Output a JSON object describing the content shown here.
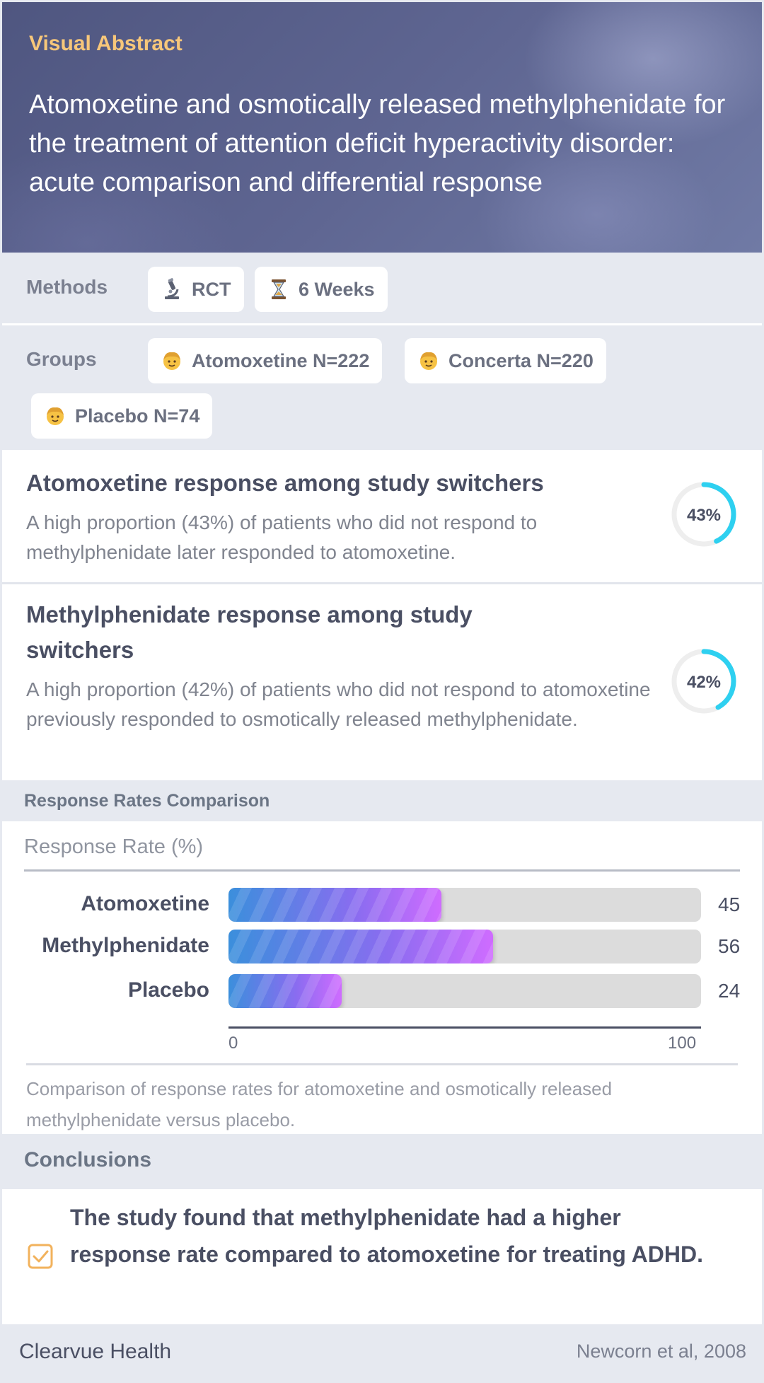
{
  "header": {
    "kicker": "Visual Abstract",
    "title": "Atomoxetine and osmotically released methylphenidate for the treatment of attention deficit hyperactivity disorder: acute comparison and differential response"
  },
  "methods": {
    "label": "Methods",
    "chips": [
      {
        "icon": "microscope-icon",
        "text": "RCT"
      },
      {
        "icon": "hourglass-icon",
        "text": "6 Weeks"
      }
    ]
  },
  "groups": {
    "label": "Groups",
    "chips": [
      {
        "icon": "person-icon",
        "text": "Atomoxetine N=222"
      },
      {
        "icon": "person-icon",
        "text": "Concerta N=220"
      },
      {
        "icon": "person-icon",
        "text": "Placebo N=74"
      }
    ]
  },
  "findings": [
    {
      "title": "Atomoxetine response among study switchers",
      "description": "A high proportion (43%) of patients who did not respond to methylphenidate later responded to atomoxetine.",
      "percent": 43,
      "percent_label": "43%"
    },
    {
      "title": "Methylphenidate response among study switchers",
      "description": "A high proportion (42%) of patients who did not respond to atomoxetine previously responded to osmotically released methylphenidate.",
      "percent": 42,
      "percent_label": "42%"
    }
  ],
  "chart_section": {
    "title": "Response Rates Comparison"
  },
  "chart_data": {
    "type": "bar",
    "orientation": "horizontal",
    "title": "Response Rates Comparison",
    "xlabel": "Response Rate (%)",
    "categories": [
      "Atomoxetine",
      "Methylphenidate",
      "Placebo"
    ],
    "values": [
      45,
      56,
      24
    ],
    "value_labels": [
      "45",
      "56",
      "24"
    ],
    "xlim": [
      0,
      100
    ],
    "tick_labels": [
      "0",
      "100"
    ],
    "grid": false,
    "caption": "Comparison of response rates for atomoxetine and osmotically released methylphenidate versus placebo."
  },
  "conclusions": {
    "title": "Conclusions",
    "text": "The study found that methylphenidate had a higher response rate compared to atomoxetine for treating ADHD."
  },
  "footer": {
    "brand": "Clearvue Health",
    "citation": "Newcorn et al, 2008"
  },
  "colors": {
    "accent_ring": "#2ed0f0",
    "kicker": "#f7c77a",
    "check": "#f2b25c"
  }
}
